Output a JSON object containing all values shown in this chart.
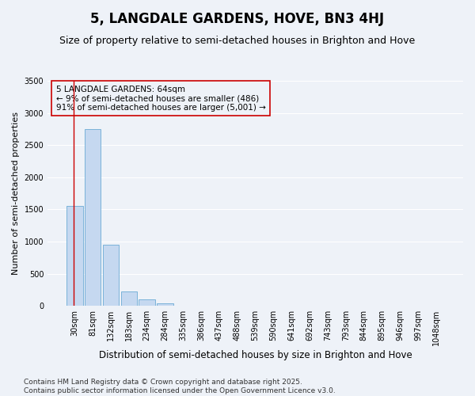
{
  "title": "5, LANGDALE GARDENS, HOVE, BN3 4HJ",
  "subtitle": "Size of property relative to semi-detached houses in Brighton and Hove",
  "xlabel": "Distribution of semi-detached houses by size in Brighton and Hove",
  "ylabel": "Number of semi-detached properties",
  "categories": [
    "30sqm",
    "81sqm",
    "132sqm",
    "183sqm",
    "234sqm",
    "284sqm",
    "335sqm",
    "386sqm",
    "437sqm",
    "488sqm",
    "539sqm",
    "590sqm",
    "641sqm",
    "692sqm",
    "743sqm",
    "793sqm",
    "844sqm",
    "895sqm",
    "946sqm",
    "997sqm",
    "1048sqm"
  ],
  "values": [
    1550,
    2750,
    950,
    225,
    100,
    40,
    8,
    0,
    0,
    0,
    0,
    0,
    0,
    0,
    0,
    0,
    0,
    0,
    0,
    0,
    0
  ],
  "bar_color": "#c5d8f0",
  "bar_edge_color": "#6aaad4",
  "highlight_line_color": "#cc0000",
  "annotation_text": "5 LANGDALE GARDENS: 64sqm\n← 9% of semi-detached houses are smaller (486)\n91% of semi-detached houses are larger (5,001) →",
  "annotation_box_edge": "#cc0000",
  "ylim": [
    0,
    3500
  ],
  "yticks": [
    0,
    500,
    1000,
    1500,
    2000,
    2500,
    3000,
    3500
  ],
  "background_color": "#eef2f8",
  "grid_color": "#ffffff",
  "footer_text": "Contains HM Land Registry data © Crown copyright and database right 2025.\nContains public sector information licensed under the Open Government Licence v3.0.",
  "title_fontsize": 12,
  "subtitle_fontsize": 9,
  "xlabel_fontsize": 8.5,
  "ylabel_fontsize": 8,
  "tick_fontsize": 7,
  "annotation_fontsize": 7.5,
  "footer_fontsize": 6.5
}
